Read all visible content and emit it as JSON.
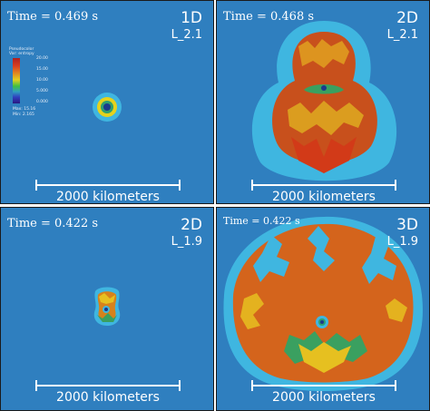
{
  "panels": [
    {
      "time": "Time = 0.469 s",
      "dim": "1D",
      "run": "L_2.1",
      "scale": "2000 kilometers"
    },
    {
      "time": "Time = 0.468 s",
      "dim": "2D",
      "run": "L_2.1",
      "scale": "2000 kilometers"
    },
    {
      "time": "Time = 0.422 s",
      "dim": "2D",
      "run": "L_1.9",
      "scale": "2000 kilometers"
    },
    {
      "time": "Time = 0.422 s",
      "dim": "3D",
      "run": "L_1.9",
      "scale": "2000 kilometers"
    }
  ],
  "legend": {
    "title1": "Pseudocolor",
    "title2": "Var: entropy",
    "ticks": [
      "20.00",
      "15.00",
      "10.00",
      "5.000",
      "0.000"
    ],
    "max": "Max: 15.16",
    "min": "Min: 2.165"
  },
  "colors": {
    "background": "#2f7fbf",
    "shell": "#3fb6e0",
    "core": "#d84a1a",
    "hot": "#e0c020"
  }
}
